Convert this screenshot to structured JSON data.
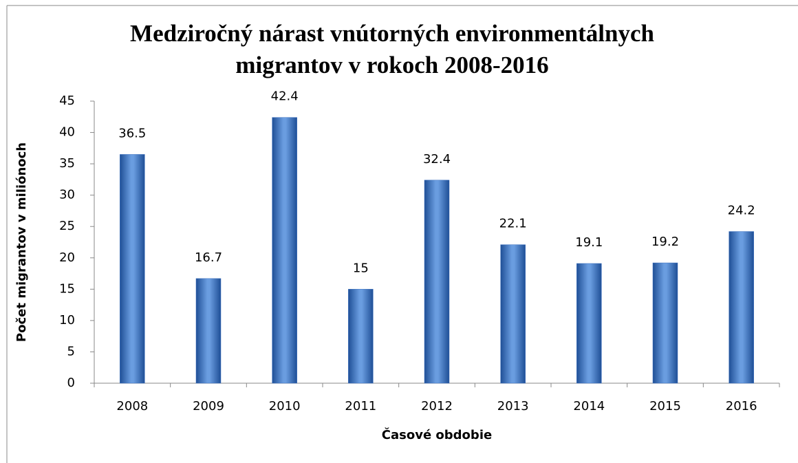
{
  "chart_data": {
    "type": "bar",
    "title": [
      "Medziročný nárast vnútorných environmentálnych",
      "migrantov v rokoch 2008-2016"
    ],
    "x_label": "Časové obdobie",
    "y_label": "Počet migrantov v miliónoch",
    "categories": [
      "2008",
      "2009",
      "2010",
      "2011",
      "2012",
      "2013",
      "2014",
      "2015",
      "2016"
    ],
    "values": [
      36.5,
      16.7,
      42.4,
      15,
      32.4,
      22.1,
      19.1,
      19.2,
      24.2
    ],
    "color": "#3a6fbf",
    "ylim": [
      0,
      45
    ],
    "yticks": [
      0,
      5,
      10,
      15,
      20,
      25,
      30,
      35,
      40,
      45
    ],
    "grid": false
  }
}
